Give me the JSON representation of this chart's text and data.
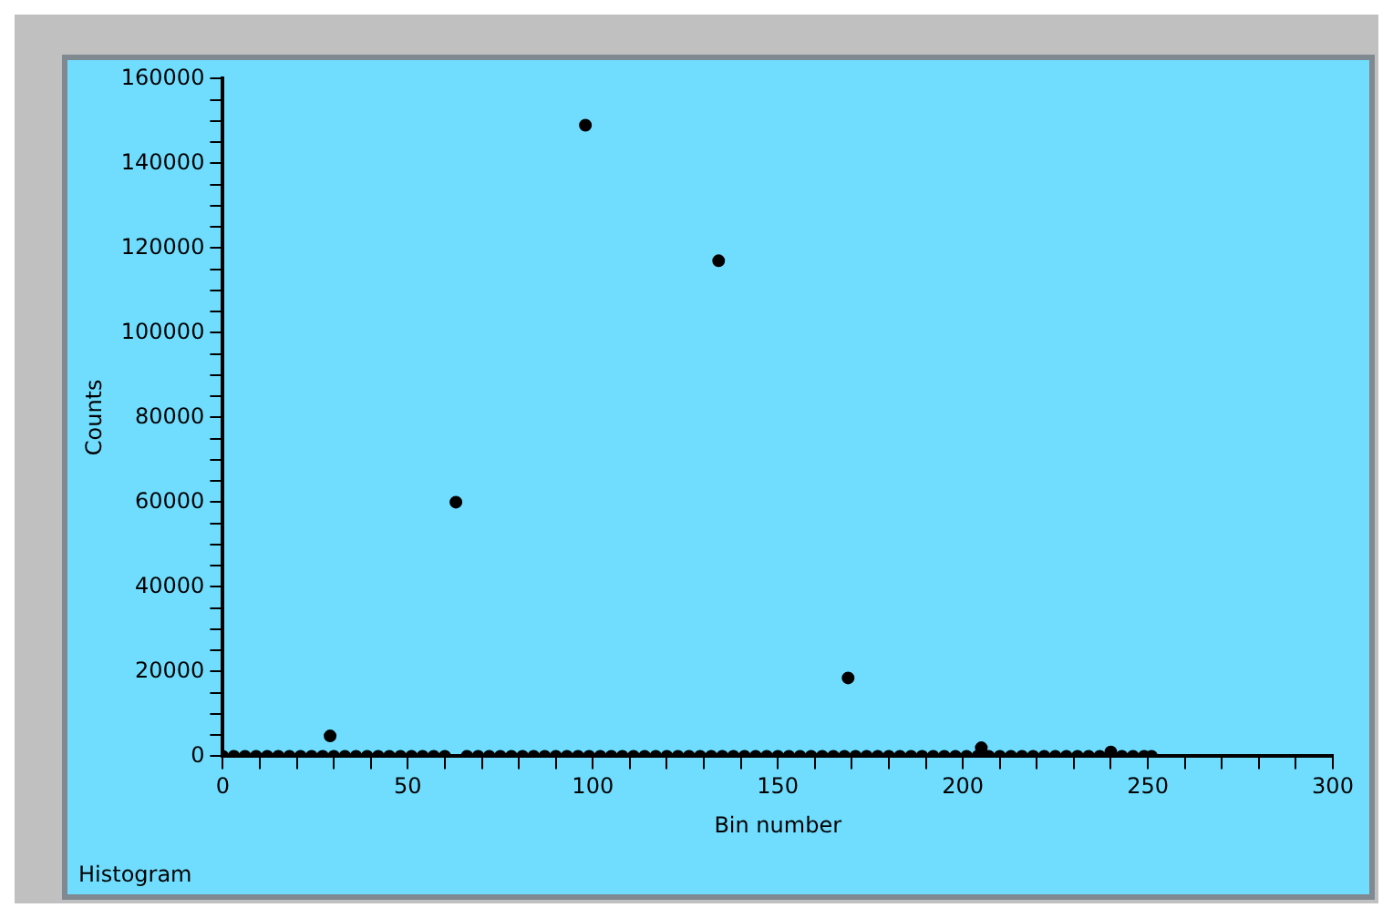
{
  "chart_data": {
    "type": "scatter",
    "xlabel": "Bin number",
    "ylabel": "Counts",
    "annotations": [
      "Histogram"
    ],
    "x": [
      0,
      3,
      6,
      9,
      12,
      15,
      18,
      21,
      24,
      27,
      29,
      30,
      33,
      36,
      39,
      42,
      45,
      48,
      51,
      54,
      57,
      60,
      63,
      66,
      69,
      72,
      75,
      78,
      81,
      84,
      87,
      90,
      93,
      96,
      98,
      99,
      102,
      105,
      108,
      111,
      114,
      117,
      120,
      123,
      126,
      129,
      132,
      134,
      135,
      138,
      141,
      144,
      147,
      150,
      153,
      156,
      159,
      162,
      165,
      168,
      169,
      171,
      174,
      177,
      180,
      183,
      186,
      189,
      192,
      195,
      198,
      201,
      204,
      205,
      207,
      210,
      213,
      216,
      219,
      222,
      225,
      228,
      231,
      234,
      237,
      240,
      243,
      246,
      249,
      251
    ],
    "series": [
      {
        "color": "#000000",
        "values": [
          0,
          0,
          0,
          0,
          0,
          0,
          0,
          0,
          0,
          0,
          4800,
          0,
          0,
          0,
          0,
          0,
          0,
          0,
          0,
          0,
          0,
          0,
          60000,
          0,
          0,
          0,
          0,
          0,
          0,
          0,
          0,
          0,
          0,
          0,
          149000,
          0,
          0,
          0,
          0,
          0,
          0,
          0,
          0,
          0,
          0,
          0,
          0,
          117000,
          0,
          0,
          0,
          0,
          0,
          0,
          0,
          0,
          0,
          0,
          0,
          0,
          18500,
          0,
          0,
          0,
          0,
          0,
          0,
          0,
          0,
          0,
          0,
          0,
          0,
          2000,
          0,
          0,
          0,
          0,
          0,
          0,
          0,
          0,
          0,
          0,
          0,
          1000,
          0,
          0,
          0,
          0
        ]
      }
    ],
    "xlim": [
      0,
      300
    ],
    "ylim": [
      0,
      160000
    ],
    "xticks": [
      0,
      {
        "value": 10,
        "label": null
      },
      {
        "value": 20,
        "label": null
      },
      {
        "value": 30,
        "label": null
      },
      {
        "value": 40,
        "label": null
      },
      50,
      {
        "value": 60,
        "label": null
      },
      {
        "value": 70,
        "label": null
      },
      {
        "value": 80,
        "label": null
      },
      {
        "value": 90,
        "label": null
      },
      100,
      {
        "value": 110,
        "label": null
      },
      {
        "value": 120,
        "label": null
      },
      {
        "value": 130,
        "label": null
      },
      {
        "value": 140,
        "label": null
      },
      150,
      {
        "value": 160,
        "label": null
      },
      {
        "value": 170,
        "label": null
      },
      {
        "value": 180,
        "label": null
      },
      {
        "value": 190,
        "label": null
      },
      200,
      {
        "value": 210,
        "label": null
      },
      {
        "value": 220,
        "label": null
      },
      {
        "value": 230,
        "label": null
      },
      {
        "value": 240,
        "label": null
      },
      250,
      {
        "value": 260,
        "label": null
      },
      {
        "value": 270,
        "label": null
      },
      {
        "value": 280,
        "label": null
      },
      {
        "value": 290,
        "label": null
      },
      300
    ],
    "yticks": [
      0,
      {
        "value": 5000,
        "label": null
      },
      {
        "value": 10000,
        "label": null
      },
      {
        "value": 15000,
        "label": null
      },
      20000,
      {
        "value": 25000,
        "label": null
      },
      {
        "value": 30000,
        "label": null
      },
      {
        "value": 35000,
        "label": null
      },
      40000,
      {
        "value": 45000,
        "label": null
      },
      {
        "value": 50000,
        "label": null
      },
      {
        "value": 55000,
        "label": null
      },
      60000,
      {
        "value": 65000,
        "label": null
      },
      {
        "value": 70000,
        "label": null
      },
      {
        "value": 75000,
        "label": null
      },
      80000,
      {
        "value": 85000,
        "label": null
      },
      {
        "value": 90000,
        "label": null
      },
      {
        "value": 95000,
        "label": null
      },
      100000,
      {
        "value": 105000,
        "label": null
      },
      {
        "value": 110000,
        "label": null
      },
      {
        "value": 115000,
        "label": null
      },
      120000,
      {
        "value": 125000,
        "label": null
      },
      {
        "value": 130000,
        "label": null
      },
      {
        "value": 135000,
        "label": null
      },
      140000,
      {
        "value": 145000,
        "label": null
      },
      {
        "value": 150000,
        "label": null
      },
      {
        "value": 155000,
        "label": null
      },
      160000
    ],
    "grid": false,
    "legend": false,
    "marker": "circle"
  }
}
